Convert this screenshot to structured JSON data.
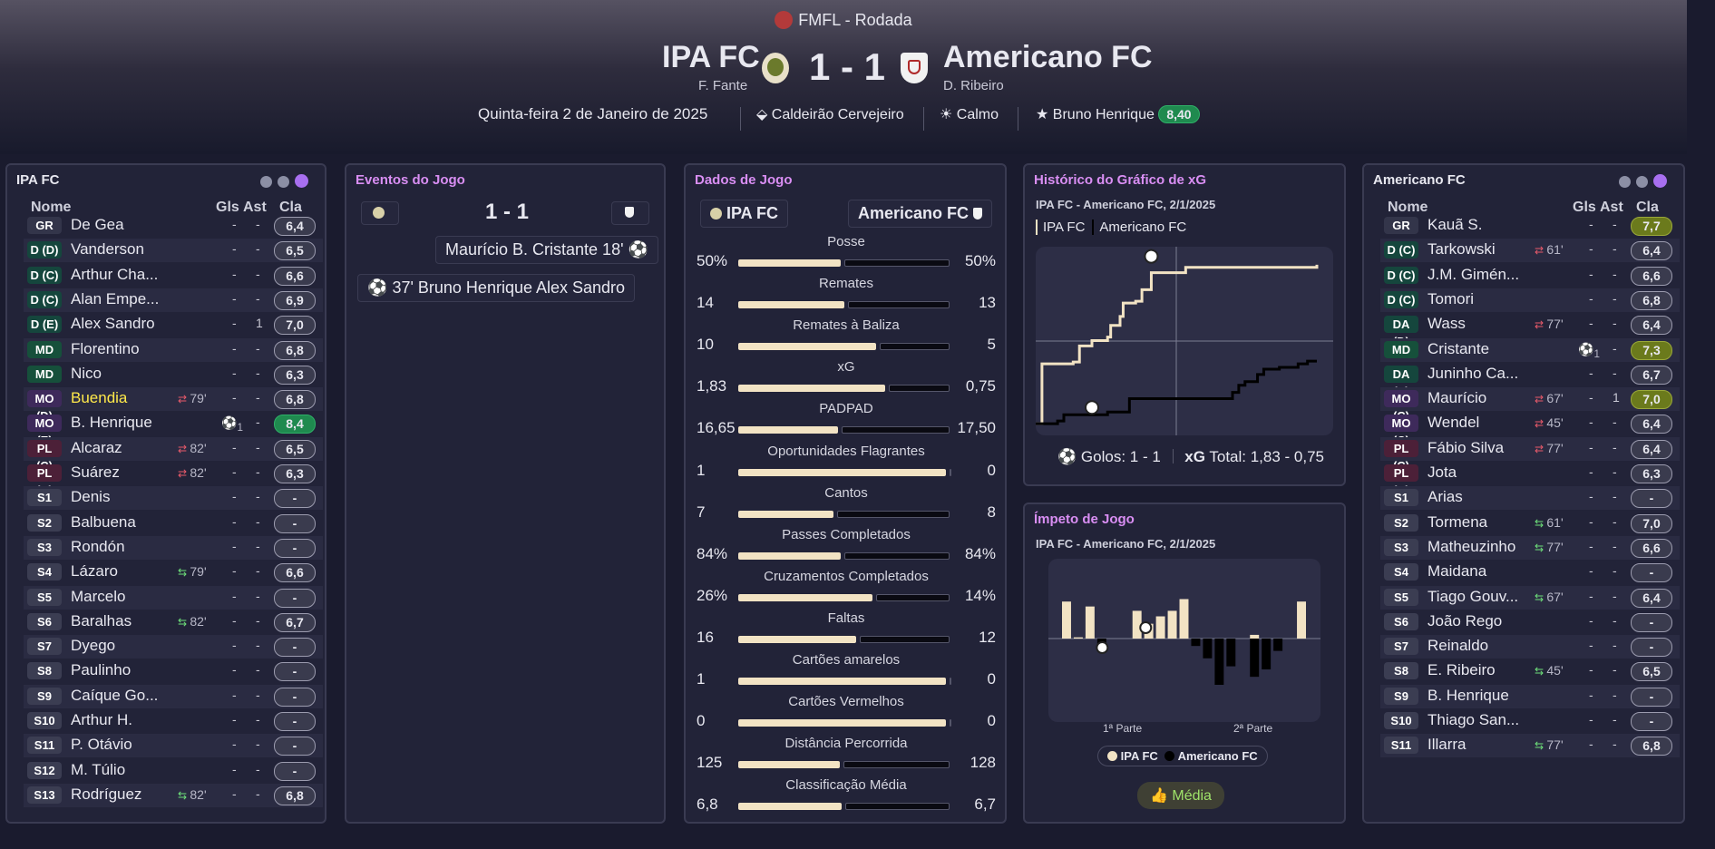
{
  "header": {
    "competition": "FMFL - Rodada",
    "home": {
      "name": "IPA FC",
      "manager": "F. Fante"
    },
    "away": {
      "name": "Americano FC",
      "manager": "D. Ribeiro"
    },
    "score": "1 - 1",
    "date": "Quinta-feira 2 de Janeiro de 2025",
    "stadium": "Caldeirão Cervejeiro",
    "weather": "Calmo",
    "motm": "Bruno Henrique",
    "motm_rating": "8,40"
  },
  "table_headers": {
    "name": "Nome",
    "gls": "Gls",
    "ast": "Ast",
    "cla": "Cla"
  },
  "home_panel": {
    "title": "IPA FC",
    "players": [
      {
        "pos": "GR",
        "cls": "gr",
        "name": "De Gea",
        "sub": "",
        "gls": "-",
        "ast": "-",
        "cla": "6,4",
        "c": ""
      },
      {
        "pos": "D (D)",
        "cls": "d",
        "name": "Vanderson",
        "sub": "",
        "gls": "-",
        "ast": "-",
        "cla": "6,5",
        "c": ""
      },
      {
        "pos": "D (C)",
        "cls": "d",
        "name": "Arthur Cha...",
        "sub": "",
        "gls": "-",
        "ast": "-",
        "cla": "6,6",
        "c": ""
      },
      {
        "pos": "D (C)",
        "cls": "d",
        "name": "Alan Empe...",
        "sub": "",
        "gls": "-",
        "ast": "-",
        "cla": "6,9",
        "c": ""
      },
      {
        "pos": "D (E)",
        "cls": "d",
        "name": "Alex Sandro",
        "sub": "",
        "gls": "-",
        "ast": "1",
        "cla": "7,0",
        "c": ""
      },
      {
        "pos": "MD",
        "cls": "md",
        "name": "Florentino",
        "sub": "",
        "gls": "-",
        "ast": "-",
        "cla": "6,8",
        "c": ""
      },
      {
        "pos": "MD",
        "cls": "md",
        "name": "Nico",
        "sub": "",
        "gls": "-",
        "ast": "-",
        "cla": "6,3",
        "c": ""
      },
      {
        "pos": "MO (D)",
        "cls": "mo",
        "name": "Buendia",
        "sub": "79'",
        "subdir": "out",
        "gls": "-",
        "ast": "-",
        "cla": "6,8",
        "c": "",
        "hl": true
      },
      {
        "pos": "MO (E)",
        "cls": "mo",
        "name": "B. Henrique",
        "sub": "",
        "goal": "1",
        "gls": "",
        "ast": "-",
        "cla": "8,4",
        "c": "g"
      },
      {
        "pos": "PL (C)",
        "cls": "pl",
        "name": "Alcaraz",
        "sub": "82'",
        "subdir": "out",
        "gls": "-",
        "ast": "-",
        "cla": "6,5",
        "c": ""
      },
      {
        "pos": "PL (C)",
        "cls": "pl",
        "name": "Suárez",
        "sub": "82'",
        "subdir": "out",
        "gls": "-",
        "ast": "-",
        "cla": "6,3",
        "c": ""
      },
      {
        "pos": "S1",
        "cls": "s",
        "name": "Denis",
        "sub": "",
        "gls": "-",
        "ast": "-",
        "cla": "-",
        "c": ""
      },
      {
        "pos": "S2",
        "cls": "s",
        "name": "Balbuena",
        "sub": "",
        "gls": "-",
        "ast": "-",
        "cla": "-",
        "c": ""
      },
      {
        "pos": "S3",
        "cls": "s",
        "name": "Rondón",
        "sub": "",
        "gls": "-",
        "ast": "-",
        "cla": "-",
        "c": ""
      },
      {
        "pos": "S4",
        "cls": "s",
        "name": "Lázaro",
        "sub": "79'",
        "subdir": "in",
        "gls": "-",
        "ast": "-",
        "cla": "6,6",
        "c": ""
      },
      {
        "pos": "S5",
        "cls": "s",
        "name": "Marcelo",
        "sub": "",
        "gls": "-",
        "ast": "-",
        "cla": "-",
        "c": ""
      },
      {
        "pos": "S6",
        "cls": "s",
        "name": "Baralhas",
        "sub": "82'",
        "subdir": "in",
        "gls": "-",
        "ast": "-",
        "cla": "6,7",
        "c": ""
      },
      {
        "pos": "S7",
        "cls": "s",
        "name": "Dyego",
        "sub": "",
        "gls": "-",
        "ast": "-",
        "cla": "-",
        "c": ""
      },
      {
        "pos": "S8",
        "cls": "s",
        "name": "Paulinho",
        "sub": "",
        "gls": "-",
        "ast": "-",
        "cla": "-",
        "c": ""
      },
      {
        "pos": "S9",
        "cls": "s",
        "name": "Caíque Go...",
        "sub": "",
        "gls": "-",
        "ast": "-",
        "cla": "-",
        "c": ""
      },
      {
        "pos": "S10",
        "cls": "s",
        "name": "Arthur H.",
        "sub": "",
        "gls": "-",
        "ast": "-",
        "cla": "-",
        "c": ""
      },
      {
        "pos": "S11",
        "cls": "s",
        "name": "P. Otávio",
        "sub": "",
        "gls": "-",
        "ast": "-",
        "cla": "-",
        "c": ""
      },
      {
        "pos": "S12",
        "cls": "s",
        "name": "M. Túlio",
        "sub": "",
        "gls": "-",
        "ast": "-",
        "cla": "-",
        "c": ""
      },
      {
        "pos": "S13",
        "cls": "s",
        "name": "Rodríguez",
        "sub": "82'",
        "subdir": "in",
        "gls": "-",
        "ast": "-",
        "cla": "6,8",
        "c": ""
      }
    ]
  },
  "away_panel": {
    "title": "Americano FC",
    "players": [
      {
        "pos": "GR",
        "cls": "gr",
        "name": "Kauã S.",
        "sub": "",
        "gls": "-",
        "ast": "-",
        "cla": "7,7",
        "c": "y"
      },
      {
        "pos": "D (C)",
        "cls": "d",
        "name": "Tarkowski",
        "sub": "61'",
        "subdir": "out",
        "gls": "-",
        "ast": "-",
        "cla": "6,4",
        "c": ""
      },
      {
        "pos": "D (C)",
        "cls": "d",
        "name": "J.M. Gimén...",
        "sub": "",
        "gls": "-",
        "ast": "-",
        "cla": "6,6",
        "c": ""
      },
      {
        "pos": "D (C)",
        "cls": "d",
        "name": "Tomori",
        "sub": "",
        "gls": "-",
        "ast": "-",
        "cla": "6,8",
        "c": ""
      },
      {
        "pos": "DA (D)",
        "cls": "d",
        "name": "Wass",
        "sub": "77'",
        "subdir": "out",
        "gls": "-",
        "ast": "-",
        "cla": "6,4",
        "c": ""
      },
      {
        "pos": "MD",
        "cls": "md",
        "name": "Cristante",
        "sub": "",
        "goal": "1",
        "gls": "",
        "ast": "-",
        "cla": "7,3",
        "c": "y"
      },
      {
        "pos": "DA (E)",
        "cls": "d",
        "name": "Juninho Ca...",
        "sub": "",
        "gls": "-",
        "ast": "-",
        "cla": "6,7",
        "c": ""
      },
      {
        "pos": "MO (C)",
        "cls": "mo",
        "name": "Maurício",
        "sub": "67'",
        "subdir": "out",
        "gls": "-",
        "ast": "1",
        "cla": "7,0",
        "c": "y"
      },
      {
        "pos": "MO (C)",
        "cls": "mo",
        "name": "Wendel",
        "sub": "45'",
        "subdir": "out",
        "gls": "-",
        "ast": "-",
        "cla": "6,4",
        "c": ""
      },
      {
        "pos": "PL (C)",
        "cls": "pl",
        "name": "Fábio Silva",
        "sub": "77'",
        "subdir": "out",
        "gls": "-",
        "ast": "-",
        "cla": "6,4",
        "c": ""
      },
      {
        "pos": "PL (C)",
        "cls": "pl",
        "name": "Jota",
        "sub": "",
        "gls": "-",
        "ast": "-",
        "cla": "6,3",
        "c": ""
      },
      {
        "pos": "S1",
        "cls": "s",
        "name": "Arias",
        "sub": "",
        "gls": "-",
        "ast": "-",
        "cla": "-",
        "c": ""
      },
      {
        "pos": "S2",
        "cls": "s",
        "name": "Tormena",
        "sub": "61'",
        "subdir": "in",
        "gls": "-",
        "ast": "-",
        "cla": "7,0",
        "c": ""
      },
      {
        "pos": "S3",
        "cls": "s",
        "name": "Matheuzinho",
        "sub": "77'",
        "subdir": "in",
        "gls": "-",
        "ast": "-",
        "cla": "6,6",
        "c": ""
      },
      {
        "pos": "S4",
        "cls": "s",
        "name": "Maidana",
        "sub": "",
        "gls": "-",
        "ast": "-",
        "cla": "-",
        "c": ""
      },
      {
        "pos": "S5",
        "cls": "s",
        "name": "Tiago Gouv...",
        "sub": "67'",
        "subdir": "in",
        "gls": "-",
        "ast": "-",
        "cla": "6,4",
        "c": ""
      },
      {
        "pos": "S6",
        "cls": "s",
        "name": "João Rego",
        "sub": "",
        "gls": "-",
        "ast": "-",
        "cla": "-",
        "c": ""
      },
      {
        "pos": "S7",
        "cls": "s",
        "name": "Reinaldo",
        "sub": "",
        "gls": "-",
        "ast": "-",
        "cla": "-",
        "c": ""
      },
      {
        "pos": "S8",
        "cls": "s",
        "name": "E. Ribeiro",
        "sub": "45'",
        "subdir": "in",
        "gls": "-",
        "ast": "-",
        "cla": "6,5",
        "c": ""
      },
      {
        "pos": "S9",
        "cls": "s",
        "name": "B. Henrique",
        "sub": "",
        "gls": "-",
        "ast": "-",
        "cla": "-",
        "c": ""
      },
      {
        "pos": "S10",
        "cls": "s",
        "name": "Thiago San...",
        "sub": "",
        "gls": "-",
        "ast": "-",
        "cla": "-",
        "c": ""
      },
      {
        "pos": "S11",
        "cls": "s",
        "name": "Illarra",
        "sub": "77'",
        "subdir": "in",
        "gls": "-",
        "ast": "-",
        "cla": "6,8",
        "c": ""
      }
    ]
  },
  "events": {
    "title": "Eventos do Jogo",
    "score": "1 - 1",
    "away_event": "Maurício B. Cristante 18'",
    "home_event": "37' Bruno Henrique Alex Sandro"
  },
  "stats": {
    "title": "Dados de Jogo",
    "home": "IPA FC",
    "away": "Americano FC",
    "rows": [
      {
        "label": "Posse",
        "h": "50%",
        "a": "50%",
        "hv": 50,
        "av": 50
      },
      {
        "label": "Remates",
        "h": "14",
        "a": "13",
        "hv": 14,
        "av": 13
      },
      {
        "label": "Remates à Baliza",
        "h": "10",
        "a": "5",
        "hv": 10,
        "av": 5
      },
      {
        "label": "xG",
        "h": "1,83",
        "a": "0,75",
        "hv": 1.83,
        "av": 0.75
      },
      {
        "label": "PADPAD",
        "h": "16,65",
        "a": "17,50",
        "hv": 16.65,
        "av": 17.5
      },
      {
        "label": "Oportunidades Flagrantes",
        "h": "1",
        "a": "0",
        "hv": 1,
        "av": 0
      },
      {
        "label": "Cantos",
        "h": "7",
        "a": "8",
        "hv": 7,
        "av": 8
      },
      {
        "label": "Passes Completados",
        "h": "84%",
        "a": "84%",
        "hv": 84,
        "av": 84
      },
      {
        "label": "Cruzamentos Completados",
        "h": "26%",
        "a": "14%",
        "hv": 26,
        "av": 14
      },
      {
        "label": "Faltas",
        "h": "16",
        "a": "12",
        "hv": 16,
        "av": 12
      },
      {
        "label": "Cartões amarelos",
        "h": "1",
        "a": "0",
        "hv": 1,
        "av": 0
      },
      {
        "label": "Cartões Vermelhos",
        "h": "0",
        "a": "0",
        "hv": 0,
        "av": 0
      },
      {
        "label": "Distância Percorrida",
        "h": "125",
        "a": "128",
        "hv": 125,
        "av": 128
      },
      {
        "label": "Classificação Média",
        "h": "6,8",
        "a": "6,7",
        "hv": 6.8,
        "av": 6.7
      }
    ]
  },
  "xg": {
    "title": "Histórico do Gráfico de xG",
    "subtitle": "IPA FC - Americano FC, 2/1/2025",
    "legend_home": "IPA FC",
    "legend_away": "Americano FC",
    "goals_label": "Golos: 1 - 1",
    "xg_label": "xG",
    "total_label": "Total: 1,83  -  0,75"
  },
  "chart_data": [
    {
      "type": "line",
      "title": "Histórico do Gráfico de xG",
      "xlim": [
        0,
        90
      ],
      "ylim": [
        0,
        1.95
      ],
      "series": [
        {
          "name": "IPA FC",
          "color": "#f2e3c4",
          "points": [
            [
              0,
              0.05
            ],
            [
              2,
              0.72
            ],
            [
              12,
              0.74
            ],
            [
              14,
              0.92
            ],
            [
              17,
              0.92
            ],
            [
              18,
              0.98
            ],
            [
              23,
              0.98
            ],
            [
              23,
              1.02
            ],
            [
              24,
              1.15
            ],
            [
              27,
              1.15
            ],
            [
              27,
              1.25
            ],
            [
              28,
              1.4
            ],
            [
              32,
              1.42
            ],
            [
              34,
              1.55
            ],
            [
              36,
              1.55
            ],
            [
              37,
              1.74
            ],
            [
              47,
              1.74
            ],
            [
              48,
              1.8
            ],
            [
              89,
              1.8
            ],
            [
              90,
              1.83
            ]
          ]
        },
        {
          "name": "Americano FC",
          "color": "#000000",
          "points": [
            [
              0,
              0.05
            ],
            [
              7,
              0.08
            ],
            [
              9,
              0.15
            ],
            [
              23,
              0.18
            ],
            [
              30,
              0.33
            ],
            [
              60,
              0.33
            ],
            [
              63,
              0.4
            ],
            [
              65,
              0.48
            ],
            [
              67,
              0.52
            ],
            [
              70,
              0.52
            ],
            [
              71,
              0.6
            ],
            [
              73,
              0.6
            ],
            [
              73,
              0.66
            ],
            [
              76,
              0.66
            ],
            [
              78,
              0.68
            ],
            [
              83,
              0.68
            ],
            [
              84,
              0.72
            ],
            [
              86,
              0.72
            ],
            [
              87,
              0.75
            ],
            [
              90,
              0.75
            ]
          ]
        }
      ],
      "markers": [
        {
          "series": "IPA FC",
          "minute": 37
        },
        {
          "series": "Americano FC",
          "minute": 18
        }
      ]
    },
    {
      "type": "bar",
      "title": "Ímpeto de Jogo",
      "x_labels": [
        "1ª Parte",
        "2ª Parte"
      ],
      "ylim": [
        -1,
        1
      ],
      "series": [
        {
          "name": "IPA FC",
          "color": "#f2e3c4",
          "values": [
            0.6,
            0.02,
            0.52,
            0,
            0,
            0,
            0.45,
            0.24,
            0.36,
            0.45,
            0.64,
            0,
            0,
            0,
            0,
            0,
            0.06,
            0,
            0,
            0,
            0.6
          ]
        },
        {
          "name": "Americano FC",
          "color": "#000000",
          "values": [
            0,
            0,
            0,
            -0.1,
            0,
            0,
            0,
            0,
            0,
            0,
            0,
            -0.12,
            -0.32,
            -0.75,
            -0.45,
            0,
            -0.62,
            -0.5,
            -0.2,
            0,
            0
          ]
        }
      ]
    }
  ],
  "momentum": {
    "title": "Ímpeto de Jogo",
    "subtitle": "IPA FC - Americano FC, 2/1/2025",
    "half1": "1ª Parte",
    "half2": "2ª Parte",
    "legend_home": "IPA FC",
    "legend_away": "Americano FC",
    "button": "Média"
  },
  "colors": {
    "home": "#f2e3c4",
    "away": "#000000",
    "accent": "#d98ef3",
    "good": "#1f8a4f"
  }
}
